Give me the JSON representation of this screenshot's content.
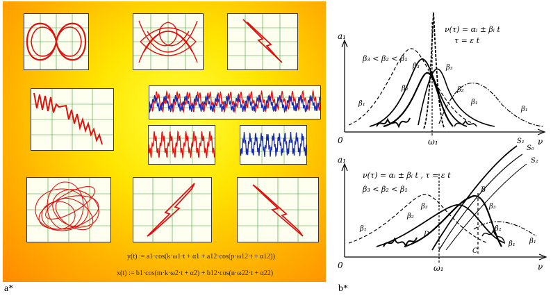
{
  "captions": {
    "a": "a*",
    "b": "b*"
  },
  "formulas": {
    "y": "y(t) := a1·cos(k·ω1·t + α1 + a12·cos(p·ω12·t + α12))",
    "x": "x(t) := b1·cos(m·k·ω2·t + α2) + b12·cos(n·ω22·t + α22)"
  },
  "diagram_top": {
    "y_axis": "a₁",
    "x_axis": "ν",
    "origin": "0",
    "omega": "ω₁",
    "eq1": "ν(τ) = αᵢ ± βᵢ t",
    "eq2": "τ = ε t",
    "ineq": "β₃ < β₂ < β₁",
    "labels": [
      "β₁",
      "β₂",
      "β₃",
      "β₃",
      "β₂",
      "β₁",
      "β₁"
    ]
  },
  "diagram_bottom": {
    "y_axis": "a₁",
    "x_axis": "ν",
    "origin": "0",
    "omega": "ω₁",
    "eq": "ν(τ) = αᵢ ± βᵢ t ,  τ = ε t",
    "ineq": "β₃ < β₂ < β₁",
    "curve_labels": [
      "S₁",
      "S₀",
      "S₂"
    ],
    "point_labels": [
      "B",
      "C",
      "D"
    ],
    "labels": [
      "β₁",
      "β₂",
      "β₃",
      "β₃",
      "β₂",
      "β₁",
      "β₁"
    ]
  },
  "colors": {
    "curve": "#e01010",
    "curve2": "#1a2ab0",
    "grid": "#2aa02a",
    "ink": "#000000"
  }
}
